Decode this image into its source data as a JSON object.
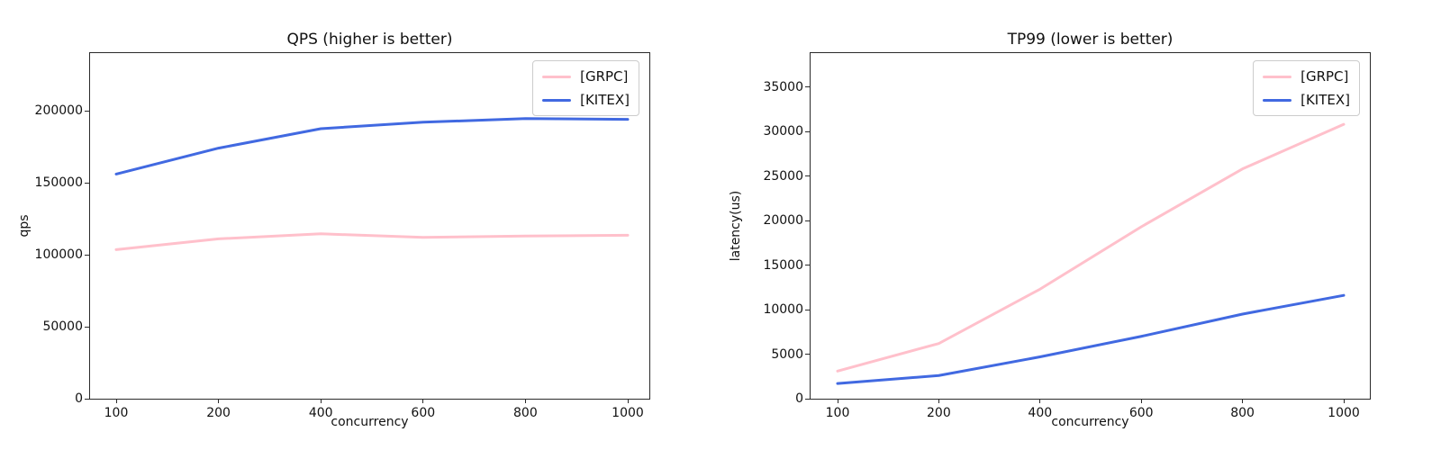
{
  "figure": {
    "background": "#ffffff",
    "text_color": "#111111",
    "grpc_color": "#ffc0cb",
    "kitex_color": "#4169e1"
  },
  "chart_data": [
    {
      "type": "line",
      "title": "QPS (higher is better)",
      "xlabel": "concurrency",
      "ylabel": "qps",
      "x_labels": [
        "100",
        "200",
        "400",
        "600",
        "800",
        "1000"
      ],
      "ylim": [
        0,
        240000
      ],
      "yticks": [
        0,
        50000,
        100000,
        150000,
        200000
      ],
      "grid": false,
      "legend_position": "upper right",
      "series": [
        {
          "name": "[GRPC]",
          "color": "#ffc0cb",
          "values": [
            103500,
            111000,
            114500,
            112000,
            113000,
            113500
          ]
        },
        {
          "name": "[KITEX]",
          "color": "#4169e1",
          "values": [
            156000,
            174000,
            187500,
            192000,
            194500,
            194000
          ]
        }
      ]
    },
    {
      "type": "line",
      "title": "TP99 (lower is better)",
      "xlabel": "concurrency",
      "ylabel": "latency(us)",
      "x_labels": [
        "100",
        "200",
        "400",
        "600",
        "800",
        "1000"
      ],
      "ylim": [
        0,
        38800
      ],
      "yticks": [
        0,
        5000,
        10000,
        15000,
        20000,
        25000,
        30000,
        35000
      ],
      "grid": false,
      "legend_position": "upper right",
      "series": [
        {
          "name": "[GRPC]",
          "color": "#ffc0cb",
          "values": [
            3100,
            6200,
            12300,
            19300,
            25800,
            30800
          ]
        },
        {
          "name": "[KITEX]",
          "color": "#4169e1",
          "values": [
            1700,
            2600,
            4700,
            7000,
            9500,
            11600
          ]
        }
      ]
    }
  ]
}
